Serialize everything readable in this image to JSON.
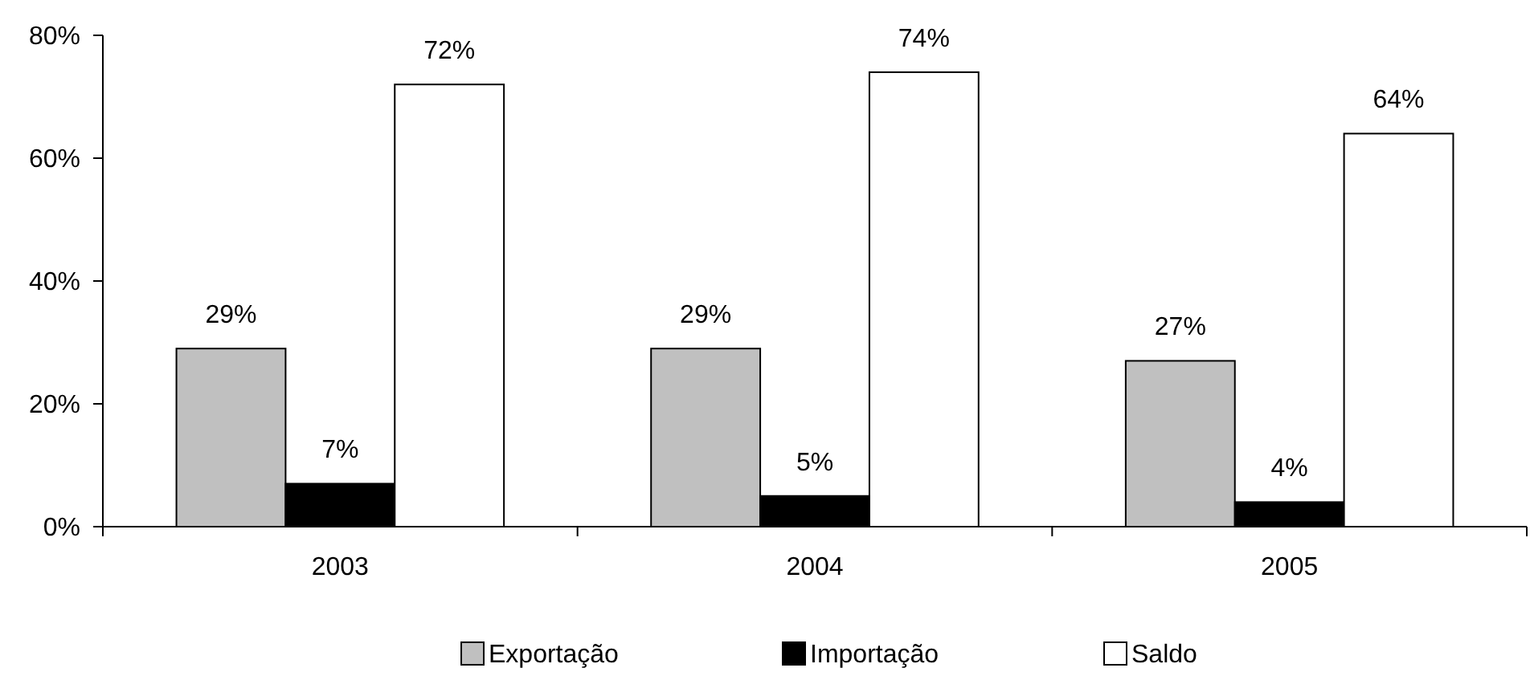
{
  "chart_data": {
    "type": "bar",
    "categories": [
      "2003",
      "2004",
      "2005"
    ],
    "series": [
      {
        "name": "Exportação",
        "color": "#c0c0c0",
        "values": [
          29,
          29,
          27
        ],
        "value_labels": [
          "29%",
          "29%",
          "27%"
        ]
      },
      {
        "name": "Importação",
        "color": "#000000",
        "values": [
          7,
          5,
          4
        ],
        "value_labels": [
          "7%",
          "5%",
          "4%"
        ]
      },
      {
        "name": "Saldo",
        "color": "#ffffff",
        "values": [
          72,
          74,
          64
        ],
        "value_labels": [
          "72%",
          "74%",
          "64%"
        ]
      }
    ],
    "ylim": [
      0,
      80
    ],
    "yticks": [
      {
        "value": 0,
        "label": "0%"
      },
      {
        "value": 20,
        "label": "20%"
      },
      {
        "value": 40,
        "label": "40%"
      },
      {
        "value": 60,
        "label": "60%"
      },
      {
        "value": 80,
        "label": "80%"
      }
    ],
    "legend": "bottom"
  }
}
